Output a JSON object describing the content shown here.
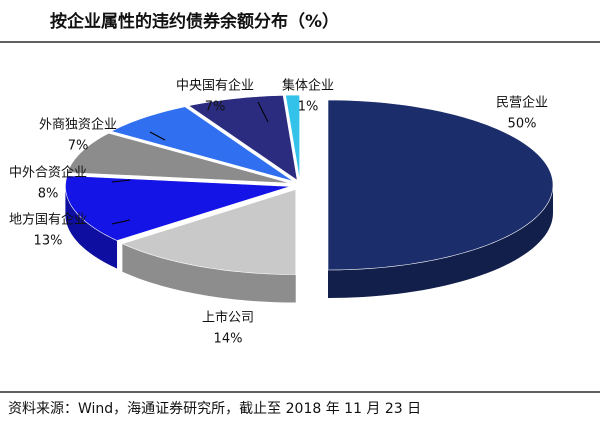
{
  "chart_data": {
    "type": "pie",
    "title": "按企业属性的违约债券余额分布（%）",
    "categories": [
      "民营企业",
      "上市公司",
      "地方国有企业",
      "中外合资企业",
      "外商独资企业",
      "中央国有企业",
      "集体企业"
    ],
    "values": [
      50,
      14,
      13,
      8,
      7,
      7,
      1
    ],
    "value_labels": [
      "50%",
      "14%",
      "13%",
      "8%",
      "7%",
      "7%",
      "1%"
    ],
    "colors": [
      "#1b2d6b",
      "#c9c9c9",
      "#1414e6",
      "#8c8c8c",
      "#2f6ff0",
      "#2b2b80",
      "#33c3ea"
    ],
    "source": "资料来源：Wind，海通证券研究所，截止至 2018 年 11 月 23 日"
  }
}
